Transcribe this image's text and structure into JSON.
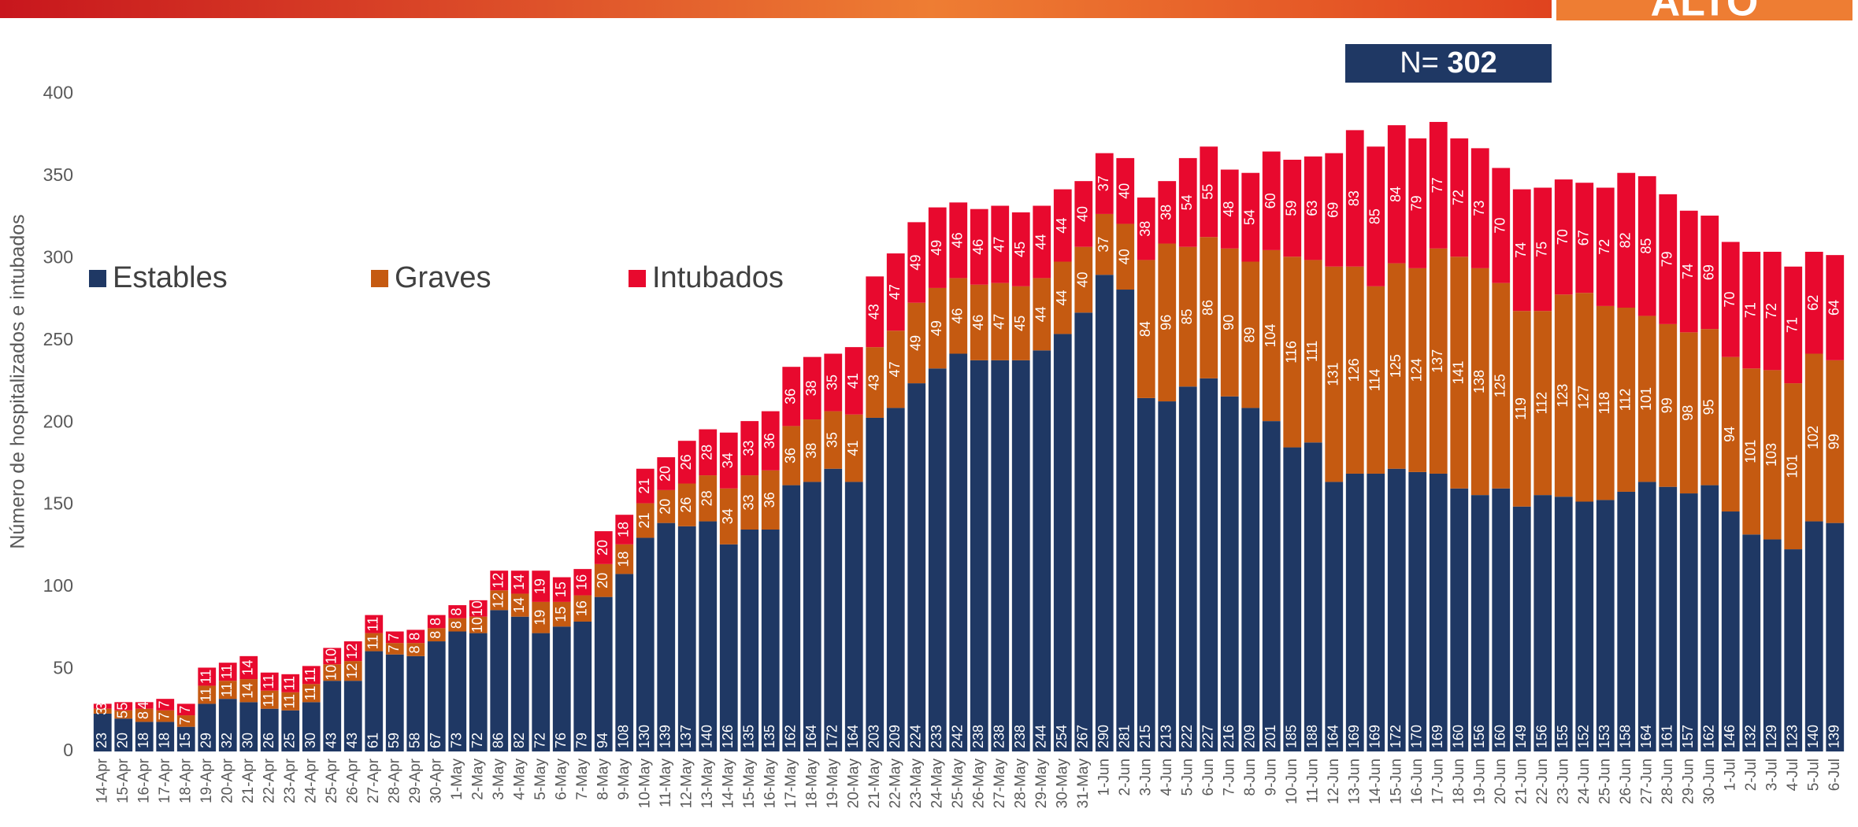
{
  "header_label": "ALTO",
  "n_label": "N=",
  "n_value": 302,
  "chart_data": {
    "type": "stacked_bar",
    "y_label": "Número de hospitalizados e intubados",
    "ylim": [
      0,
      450
    ],
    "yticks": [
      0,
      50,
      100,
      150,
      200,
      250,
      300,
      350,
      400,
      450
    ],
    "grid": false,
    "legend": "left",
    "categories": [
      "14-Apr",
      "15-Apr",
      "16-Apr",
      "17-Apr",
      "18-Apr",
      "19-Apr",
      "20-Apr",
      "21-Apr",
      "22-Apr",
      "23-Apr",
      "24-Apr",
      "25-Apr",
      "26-Apr",
      "27-Apr",
      "28-Apr",
      "29-Apr",
      "30-Apr",
      "1-May",
      "2-May",
      "3-May",
      "4-May",
      "5-May",
      "6-May",
      "7-May",
      "8-May",
      "9-May",
      "10-May",
      "11-May",
      "12-May",
      "13-May",
      "14-May",
      "15-May",
      "16-May",
      "17-May",
      "18-May",
      "19-May",
      "20-May",
      "21-May",
      "22-May",
      "23-May",
      "24-May",
      "25-May",
      "26-May",
      "27-May",
      "28-May",
      "29-May",
      "30-May",
      "31-May",
      "1-Jun",
      "2-Jun",
      "3-Jun",
      "4-Jun",
      "5-Jun",
      "6-Jun",
      "7-Jun",
      "8-Jun",
      "9-Jun",
      "10-Jun",
      "11-Jun",
      "12-Jun",
      "13-Jun",
      "14-Jun",
      "15-Jun",
      "16-Jun",
      "17-Jun",
      "18-Jun",
      "19-Jun",
      "20-Jun",
      "21-Jun",
      "22-Jun",
      "23-Jun",
      "24-Jun",
      "25-Jun",
      "26-Jun",
      "27-Jun",
      "28-Jun",
      "29-Jun",
      "30-Jun",
      "1-Jul",
      "2-Jul",
      "3-Jul",
      "4-Jul",
      "5-Jul",
      "6-Jul"
    ],
    "series": [
      {
        "name": "Estables",
        "color": "#1f3864",
        "values": [
          23,
          20,
          18,
          18,
          15,
          29,
          32,
          30,
          26,
          25,
          30,
          43,
          43,
          61,
          59,
          58,
          67,
          73,
          72,
          86,
          82,
          72,
          76,
          79,
          94,
          108,
          130,
          139,
          137,
          140,
          126,
          135,
          135,
          162,
          164,
          172,
          164,
          203,
          209,
          224,
          233,
          242,
          238,
          238,
          238,
          244,
          254,
          267,
          290,
          281,
          215,
          213,
          222,
          227,
          216,
          209,
          201,
          185,
          188,
          164,
          169,
          169,
          172,
          170,
          169,
          160,
          156,
          160,
          149,
          156,
          155,
          152,
          153,
          158,
          164,
          161,
          157,
          162,
          146,
          132,
          129,
          123,
          140,
          139
        ]
      },
      {
        "name": "Graves",
        "color": "#c55a11",
        "values": [
          3,
          5,
          8,
          7,
          7,
          11,
          11,
          14,
          11,
          11,
          11,
          10,
          12,
          11,
          7,
          8,
          8,
          8,
          10,
          12,
          14,
          19,
          15,
          16,
          20,
          18,
          21,
          20,
          26,
          28,
          34,
          33,
          36,
          36,
          38,
          35,
          41,
          43,
          47,
          49,
          49,
          46,
          46,
          47,
          45,
          44,
          44,
          40,
          37,
          40,
          84,
          96,
          85,
          86,
          90,
          89,
          104,
          116,
          111,
          131,
          126,
          114,
          125,
          124,
          137,
          141,
          138,
          125,
          119,
          112,
          123,
          127,
          118,
          112,
          101,
          99,
          98,
          95,
          94,
          101,
          103,
          101,
          102,
          99
        ]
      },
      {
        "name": "Intubados",
        "color": "#e8092e",
        "values": [
          3,
          5,
          4,
          7,
          7,
          11,
          11,
          14,
          11,
          11,
          11,
          10,
          12,
          11,
          7,
          8,
          8,
          8,
          10,
          12,
          14,
          19,
          15,
          16,
          20,
          18,
          21,
          20,
          26,
          28,
          34,
          33,
          36,
          36,
          38,
          35,
          41,
          43,
          47,
          49,
          49,
          46,
          46,
          47,
          45,
          44,
          44,
          40,
          37,
          40,
          38,
          38,
          54,
          55,
          48,
          54,
          60,
          59,
          63,
          69,
          83,
          85,
          84,
          79,
          77,
          72,
          73,
          70,
          74,
          75,
          70,
          67,
          72,
          82,
          85,
          79,
          74,
          69,
          70,
          71,
          72,
          71,
          62,
          64
        ]
      }
    ]
  }
}
